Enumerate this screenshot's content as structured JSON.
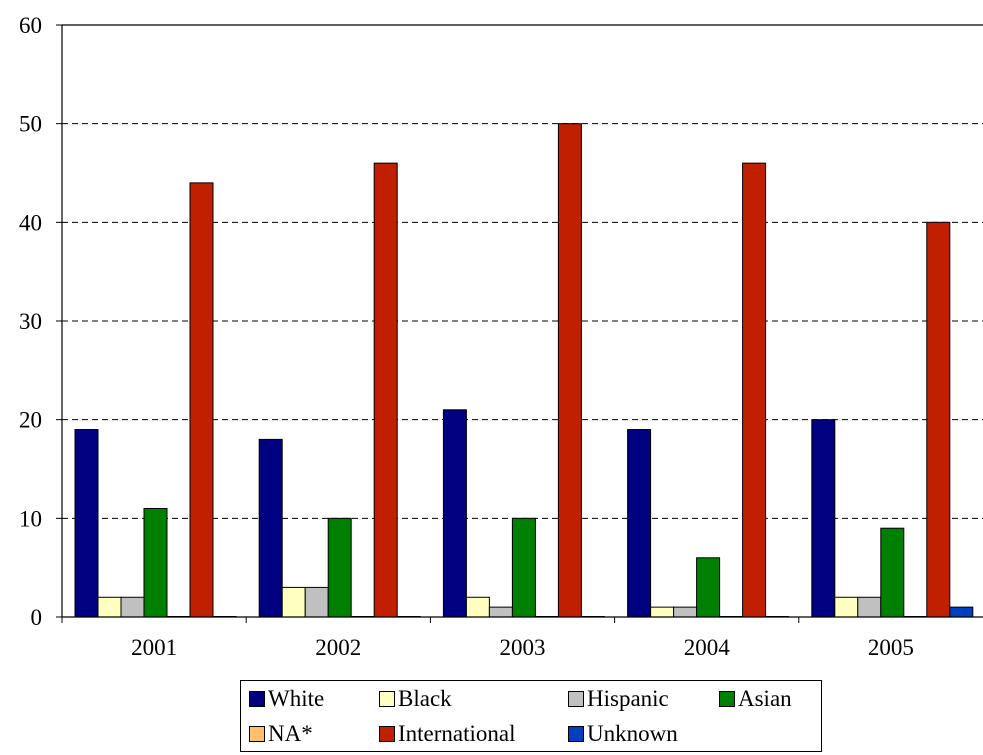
{
  "chart_data": {
    "type": "bar",
    "categories": [
      "2001",
      "2002",
      "2003",
      "2004",
      "2005"
    ],
    "series": [
      {
        "name": "White",
        "color": "#000080",
        "values": [
          19,
          18,
          21,
          19,
          20
        ]
      },
      {
        "name": "Black",
        "color": "#FFFFC0",
        "values": [
          2,
          3,
          2,
          1,
          2
        ]
      },
      {
        "name": "Hispanic",
        "color": "#C0C0C0",
        "values": [
          2,
          3,
          1,
          1,
          2
        ]
      },
      {
        "name": "Asian",
        "color": "#008000",
        "values": [
          11,
          10,
          10,
          6,
          9
        ]
      },
      {
        "name": "NA*",
        "color": "#FFC06A",
        "values": [
          0,
          0,
          0,
          0,
          0
        ]
      },
      {
        "name": "International",
        "color": "#C02000",
        "values": [
          44,
          46,
          50,
          46,
          40
        ]
      },
      {
        "name": "Unknown",
        "color": "#0040C0",
        "values": [
          0,
          0,
          0,
          0,
          1
        ]
      }
    ],
    "ylim": [
      0,
      60
    ],
    "yticks": [
      "0",
      "10",
      "20",
      "30",
      "40",
      "50",
      "60"
    ],
    "grid": true,
    "legend_position": "bottom"
  }
}
